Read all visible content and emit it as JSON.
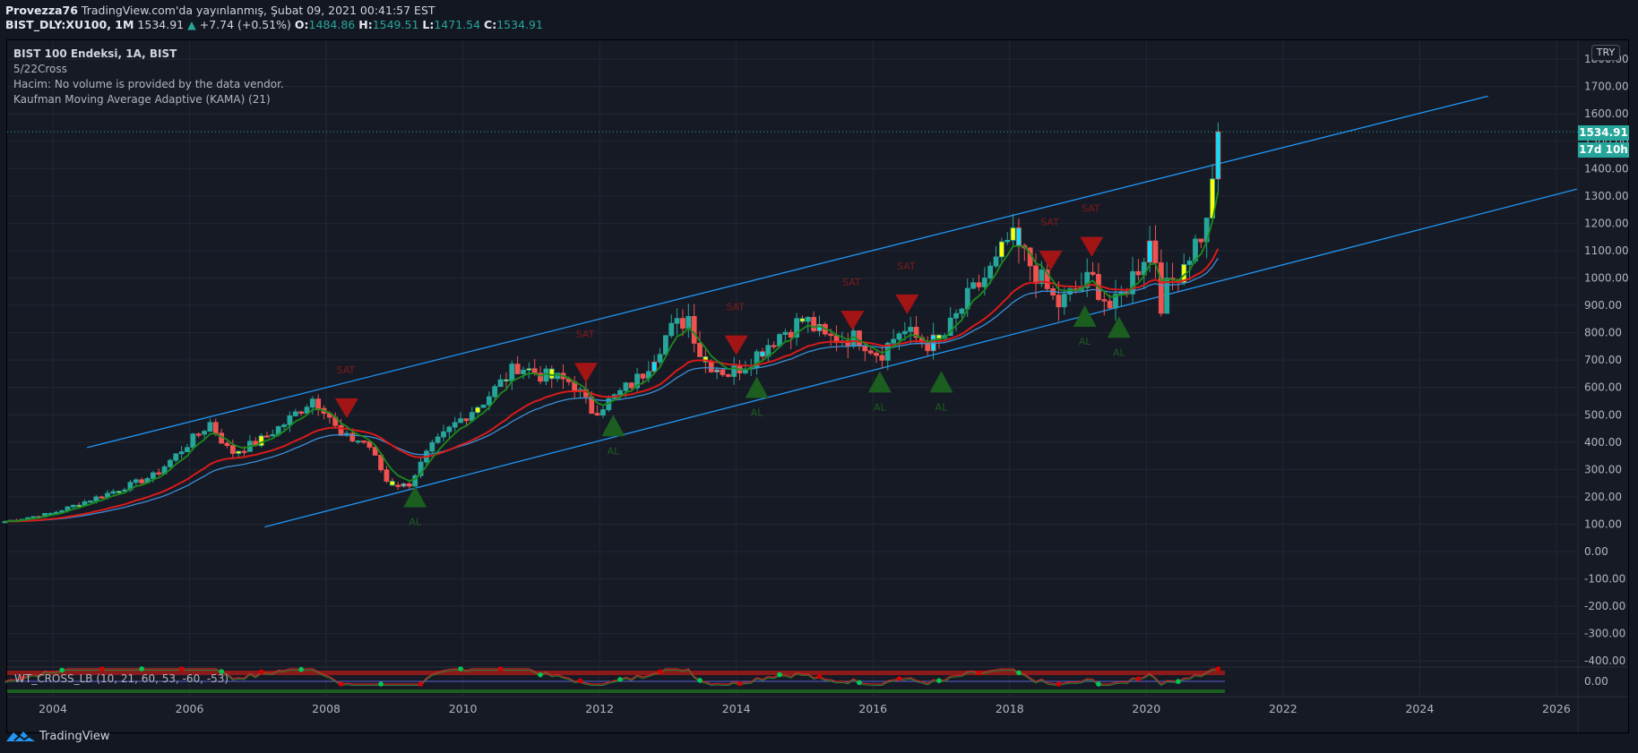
{
  "header": {
    "publisher": "Provezza76",
    "published_text": "TradingView.com'da yayınlanmış, Şubat 09, 2021 00:41:57 EST",
    "symbol": "BIST_DLY:XU100, 1M",
    "last": "1534.91",
    "change": "+7.74 (+0.51%)",
    "o_label": "O:",
    "o": "1484.86",
    "h_label": "H:",
    "h": "1549.51",
    "l_label": "L:",
    "l": "1471.54",
    "c_label": "C:",
    "c": "1534.91"
  },
  "legend": {
    "title": "BIST 100 Endeksi, 1A, BIST",
    "line2": "5/22Cross",
    "line3": "Hacim: No volume is provided by the data vendor.",
    "line4": "Kaufman Moving Average Adaptive (KAMA) (21)"
  },
  "lower_pane": {
    "label": "WT_CROSS_LB (10, 21, 60, 53, -60, -53)",
    "axis_label": "0.00"
  },
  "price_axis": {
    "currency": "TRY",
    "ticks": [
      "1800.00",
      "1700.00",
      "1600.00",
      "1500.00",
      "1400.00",
      "1300.00",
      "1200.00",
      "1100.00",
      "1000.00",
      "900.00",
      "800.00",
      "700.00",
      "600.00",
      "500.00",
      "400.00",
      "300.00",
      "200.00",
      "100.00",
      "0.00",
      "-100.00",
      "-200.00",
      "-300.00",
      "-400.00"
    ],
    "last_price_badge": "1534.91",
    "countdown_badge": "17d 10h"
  },
  "footer": {
    "brand": "TradingView"
  },
  "colors": {
    "up": "#26a69a",
    "down": "#ef5350",
    "channel": "#2196f3",
    "ema_fast": "#1b8a1b",
    "ema_slow": "#d81b1b",
    "kama": "#3d8fd6",
    "sell": "#a31515",
    "buy": "#1b5e20",
    "bg": "#161a25",
    "grid": "#232733"
  },
  "chart_data": {
    "type": "candlestick",
    "title": "BIST 100 Endeksi, 1A, BIST",
    "xlabel": "",
    "ylabel": "TRY",
    "x_ticks": [
      "2004",
      "2006",
      "2008",
      "2010",
      "2012",
      "2014",
      "2016",
      "2018",
      "2020",
      "2022",
      "2024",
      "2026"
    ],
    "ylim": [
      -400,
      1800
    ],
    "close_path": [
      [
        2003.3,
        110
      ],
      [
        2004.0,
        140
      ],
      [
        2004.5,
        185
      ],
      [
        2005.0,
        230
      ],
      [
        2005.5,
        280
      ],
      [
        2006.0,
        400
      ],
      [
        2006.3,
        470
      ],
      [
        2006.6,
        360
      ],
      [
        2007.0,
        400
      ],
      [
        2007.4,
        470
      ],
      [
        2007.8,
        560
      ],
      [
        2008.0,
        520
      ],
      [
        2008.2,
        420
      ],
      [
        2008.6,
        400
      ],
      [
        2008.9,
        250
      ],
      [
        2009.2,
        240
      ],
      [
        2009.5,
        370
      ],
      [
        2009.9,
        470
      ],
      [
        2010.3,
        550
      ],
      [
        2010.8,
        680
      ],
      [
        2011.2,
        640
      ],
      [
        2011.6,
        620
      ],
      [
        2011.9,
        510
      ],
      [
        2012.2,
        560
      ],
      [
        2012.6,
        640
      ],
      [
        2013.0,
        800
      ],
      [
        2013.3,
        860
      ],
      [
        2013.5,
        700
      ],
      [
        2013.9,
        650
      ],
      [
        2014.2,
        700
      ],
      [
        2014.6,
        790
      ],
      [
        2015.0,
        850
      ],
      [
        2015.3,
        780
      ],
      [
        2015.8,
        780
      ],
      [
        2016.1,
        720
      ],
      [
        2016.4,
        810
      ],
      [
        2016.8,
        760
      ],
      [
        2017.0,
        770
      ],
      [
        2017.4,
        930
      ],
      [
        2017.8,
        1050
      ],
      [
        2018.0,
        1150
      ],
      [
        2018.3,
        1050
      ],
      [
        2018.7,
        900
      ],
      [
        2018.9,
        940
      ],
      [
        2019.2,
        1000
      ],
      [
        2019.5,
        880
      ],
      [
        2019.9,
        1050
      ],
      [
        2020.1,
        1160
      ],
      [
        2020.2,
        900
      ],
      [
        2020.3,
        960
      ],
      [
        2020.7,
        1120
      ],
      [
        2020.9,
        1200
      ],
      [
        2021.0,
        1480
      ],
      [
        2021.1,
        1535
      ]
    ],
    "series": [
      {
        "name": "EMA fast (5)",
        "color": "green"
      },
      {
        "name": "EMA slow (22)",
        "color": "red"
      },
      {
        "name": "KAMA (21)",
        "color": "blue"
      }
    ],
    "channel": {
      "upper": [
        [
          2004.5,
          380
        ],
        [
          2025.0,
          1665
        ]
      ],
      "lower": [
        [
          2007.1,
          90
        ],
        [
          2026.3,
          1325
        ]
      ]
    },
    "signals": [
      {
        "type": "SAT",
        "date": 2008.3,
        "price": 560
      },
      {
        "type": "AL",
        "date": 2009.3,
        "price": 240
      },
      {
        "type": "SAT",
        "date": 2011.8,
        "price": 690
      },
      {
        "type": "AL",
        "date": 2012.2,
        "price": 500
      },
      {
        "type": "SAT",
        "date": 2014.0,
        "price": 790
      },
      {
        "type": "AL",
        "date": 2014.3,
        "price": 640
      },
      {
        "type": "SAT",
        "date": 2015.7,
        "price": 880
      },
      {
        "type": "AL",
        "date": 2016.1,
        "price": 660
      },
      {
        "type": "SAT",
        "date": 2016.5,
        "price": 940
      },
      {
        "type": "AL",
        "date": 2017.0,
        "price": 660
      },
      {
        "type": "SAT",
        "date": 2018.6,
        "price": 1100
      },
      {
        "type": "AL",
        "date": 2019.1,
        "price": 900
      },
      {
        "type": "SAT",
        "date": 2019.2,
        "price": 1150
      },
      {
        "type": "AL",
        "date": 2019.6,
        "price": 860
      }
    ],
    "last": {
      "open": 1484.86,
      "high": 1549.51,
      "low": 1471.54,
      "close": 1534.91
    }
  }
}
